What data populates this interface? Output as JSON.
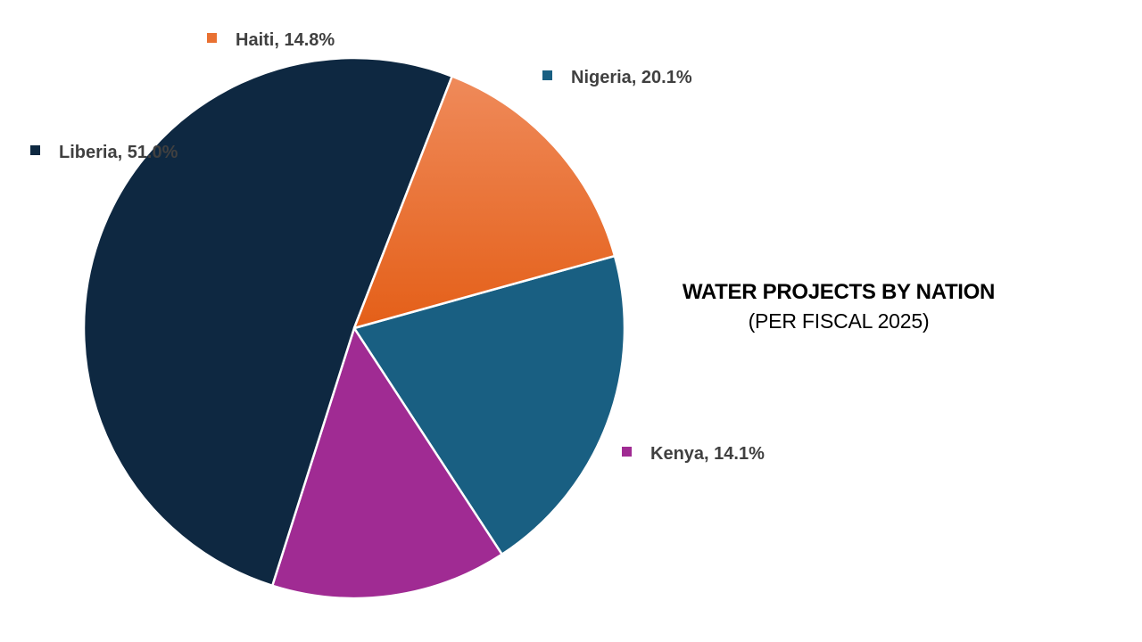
{
  "chart_data": {
    "type": "pie",
    "title": "WATER PROJECTS BY NATION",
    "subtitle": "(PER FISCAL 2025)",
    "slices": [
      {
        "name": "Nigeria",
        "value": 20.1,
        "label": "Nigeria, 20.1%",
        "color": "#195f82"
      },
      {
        "name": "Kenya",
        "value": 14.1,
        "label": "Kenya, 14.1%",
        "color": "#a02b93"
      },
      {
        "name": "Liberia",
        "value": 51.0,
        "label": "Liberia, 51.0%",
        "color": "#0e2841"
      },
      {
        "name": "Haiti",
        "value": 14.8,
        "label": "Haiti, 14.8%",
        "color": "#e97132"
      }
    ],
    "start_direction": "clockwise from top-right at Haiti/Nigeria boundary",
    "label_style": "data callouts with legend-key squares outside each slice",
    "legend": "none"
  }
}
